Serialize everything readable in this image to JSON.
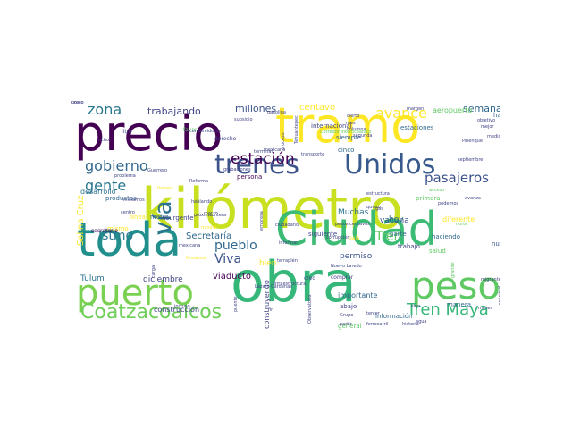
{
  "word_cloud": {
    "words": [
      {
        "text": "kilómetro",
        "color": "#c8e020",
        "size": 62
      },
      {
        "text": "obra",
        "color": "#35b779",
        "size": 62
      },
      {
        "text": "precio",
        "color": "#440154",
        "size": 54
      },
      {
        "text": "tramo",
        "color": "#fde725",
        "size": 54
      },
      {
        "text": "toda",
        "color": "#21908d",
        "size": 52
      },
      {
        "text": "Ciudad",
        "color": "#3cbb75",
        "size": 52
      },
      {
        "text": "puerto",
        "color": "#7ad151",
        "size": 40
      },
      {
        "text": "peso",
        "color": "#5ec962",
        "size": 42
      },
      {
        "text": "trenes",
        "color": "#3b528b",
        "size": 30
      },
      {
        "text": "Unidos",
        "color": "#38598c",
        "size": 30
      },
      {
        "text": "Coatzacoalcos",
        "color": "#6ece58",
        "size": 22
      },
      {
        "text": "Tren Maya",
        "color": "#35b779",
        "size": 18
      },
      {
        "text": "vía",
        "color": "#2c728e",
        "size": 26
      },
      {
        "text": "estación",
        "color": "#440154",
        "size": 17
      },
      {
        "text": "gobierno",
        "color": "#31688e",
        "size": 16
      },
      {
        "text": "gente",
        "color": "#2a788e",
        "size": 16
      },
      {
        "text": "zona",
        "color": "#2a788e",
        "size": 16
      },
      {
        "text": "avance",
        "color": "#fde725",
        "size": 16
      },
      {
        "text": "pasajeros",
        "color": "#3b528b",
        "size": 15
      },
      {
        "text": "Chetumal",
        "color": "#2c728e",
        "size": 15
      },
      {
        "text": "Istmo",
        "color": "#2a788e",
        "size": 14
      },
      {
        "text": "Viva",
        "color": "#3b528b",
        "size": 14
      },
      {
        "text": "pueblo",
        "color": "#31688e",
        "size": 14
      },
      {
        "text": "Tren",
        "color": "#5ec962",
        "size": 14
      },
      {
        "text": "semana",
        "color": "#31688e",
        "size": 11
      },
      {
        "text": "trabajando",
        "color": "#414487",
        "size": 11
      },
      {
        "text": "millones",
        "color": "#3b528b",
        "size": 11
      },
      {
        "text": "centavo",
        "color": "#fde725",
        "size": 10
      },
      {
        "text": "Secretaría",
        "color": "#31688e",
        "size": 10
      },
      {
        "text": "Salina Cruz",
        "color": "#fde725",
        "size": 10
      },
      {
        "text": "viaducto",
        "color": "#440154",
        "size": 10
      },
      {
        "text": "Tulum",
        "color": "#2c728e",
        "size": 9
      },
      {
        "text": "diciembre",
        "color": "#414487",
        "size": 9
      },
      {
        "text": "permiso",
        "color": "#3b528b",
        "size": 9
      },
      {
        "text": "hoy",
        "color": "#2c728e",
        "size": 9
      },
      {
        "text": "Muchas",
        "color": "#2c728e",
        "size": 9
      },
      {
        "text": "vacuna",
        "color": "#3b528b",
        "size": 9
      },
      {
        "text": "bien",
        "color": "#fde725",
        "size": 9
      },
      {
        "text": "aeropuerto",
        "color": "#5ec962",
        "size": 8
      },
      {
        "text": "desarrollo",
        "color": "#2c728e",
        "size": 8
      },
      {
        "text": "diferente",
        "color": "#fde725",
        "size": 8
      },
      {
        "text": "construcción",
        "color": "#414487",
        "size": 8
      },
      {
        "text": "construyendo",
        "color": "#414487",
        "size": 8
      },
      {
        "text": "importante",
        "color": "#31688e",
        "size": 8
      },
      {
        "text": "estaciones",
        "color": "#31688e",
        "size": 7
      },
      {
        "text": "hacia",
        "color": "#31688e",
        "size": 7
      },
      {
        "text": "cinco",
        "color": "#31688e",
        "size": 7
      },
      {
        "text": "siempre",
        "color": "#31688e",
        "size": 7
      },
      {
        "text": "internacional",
        "color": "#414487",
        "size": 7
      },
      {
        "text": "siguiente",
        "color": "#414487",
        "size": 7
      },
      {
        "text": "parte",
        "color": "#31688e",
        "size": 7
      },
      {
        "text": "trabajo",
        "color": "#414487",
        "size": 7
      },
      {
        "text": "salud",
        "color": "#5ec962",
        "size": 7
      },
      {
        "text": "haciendo",
        "color": "#31688e",
        "size": 7
      },
      {
        "text": "nuevo",
        "color": "#3b528b",
        "size": 7
      },
      {
        "text": "Insurgente",
        "color": "#414487",
        "size": 7
      },
      {
        "text": "productos",
        "color": "#31688e",
        "size": 7
      },
      {
        "text": "mismo",
        "color": "#fde725",
        "size": 7
      },
      {
        "text": "línea",
        "color": "#fde725",
        "size": 7
      },
      {
        "text": "metro",
        "color": "#31688e",
        "size": 7
      },
      {
        "text": "manera",
        "color": "#31688e",
        "size": 7
      },
      {
        "text": "información",
        "color": "#31688e",
        "size": 7
      },
      {
        "text": "abajo",
        "color": "#414487",
        "size": 7
      },
      {
        "text": "general",
        "color": "#5ec962",
        "size": 7
      },
      {
        "text": "persona",
        "color": "#440154",
        "size": 7
      },
      {
        "text": "primera",
        "color": "#5ec962",
        "size": 7
      },
      {
        "text": "favor",
        "color": "#5ec962",
        "size": 6
      },
      {
        "text": "derecho",
        "color": "#414487",
        "size": 6
      },
      {
        "text": "litro",
        "color": "#414487",
        "size": 6
      },
      {
        "text": "secretario",
        "color": "#440154",
        "size": 6
      },
      {
        "text": "margen",
        "color": "#414487",
        "size": 5
      },
      {
        "text": "septiembre",
        "color": "#414487",
        "size": 5
      },
      {
        "text": "ferrocarril",
        "color": "#414487",
        "size": 5
      },
      {
        "text": "historia",
        "color": "#414487",
        "size": 5
      },
      {
        "text": "Grupo",
        "color": "#414487",
        "size": 5
      },
      {
        "text": "partir",
        "color": "#414487",
        "size": 5
      },
      {
        "text": "agua",
        "color": "#414487",
        "size": 5
      },
      {
        "text": "comprar",
        "color": "#414487",
        "size": 6
      },
      {
        "text": "creo",
        "color": "#414487",
        "size": 6
      },
      {
        "text": "país",
        "color": "#fde725",
        "size": 6
      },
      {
        "text": "corrupción",
        "color": "#414487",
        "size": 5
      },
      {
        "text": "terraplén",
        "color": "#414487",
        "size": 5
      },
      {
        "text": "informar",
        "color": "#414487",
        "size": 5
      },
      {
        "text": "quiero",
        "color": "#414487",
        "size": 5
      },
      {
        "text": "gas",
        "color": "#414487",
        "size": 5
      },
      {
        "text": "estructura",
        "color": "#414487",
        "size": 5
      },
      {
        "text": "podemos",
        "color": "#414487",
        "size": 5
      },
      {
        "text": "avanza",
        "color": "#414487",
        "size": 5
      },
      {
        "text": "acceso",
        "color": "#5ec962",
        "size": 5
      },
      {
        "text": "terminal",
        "color": "#414487",
        "size": 5
      },
      {
        "text": "grabaciones",
        "color": "#414487",
        "size": 5
      },
      {
        "text": "problema",
        "color": "#414487",
        "size": 5
      },
      {
        "text": "mexicano",
        "color": "#414487",
        "size": 5
      },
      {
        "text": "infraestructura",
        "color": "#414487",
        "size": 5
      },
      {
        "text": "fin",
        "color": "#414487",
        "size": 5
      },
      {
        "text": "Observatorio",
        "color": "#414487",
        "size": 5
      },
      {
        "text": "Guerrero",
        "color": "#414487",
        "size": 5
      },
      {
        "text": "puente",
        "color": "#414487",
        "size": 5
      },
      {
        "text": "incluso",
        "color": "#414487",
        "size": 5
      },
      {
        "text": "sino",
        "color": "#414487",
        "size": 5
      },
      {
        "text": "empresa",
        "color": "#414487",
        "size": 5
      },
      {
        "text": "frontera",
        "color": "#414487",
        "size": 5
      },
      {
        "text": "próximo",
        "color": "#414487",
        "size": 5
      },
      {
        "text": "mes",
        "color": "#414487",
        "size": 5
      },
      {
        "text": "cierto",
        "color": "#414487",
        "size": 5
      },
      {
        "text": "columna",
        "color": "#414487",
        "size": 5
      },
      {
        "text": "gasolina",
        "color": "#414487",
        "size": 5
      },
      {
        "text": "consumidores",
        "color": "#414487",
        "size": 5
      },
      {
        "text": "subsidio",
        "color": "#414487",
        "size": 5
      },
      {
        "text": "ocho",
        "color": "#414487",
        "size": 5
      },
      {
        "text": "mejor",
        "color": "#414487",
        "size": 5
      },
      {
        "text": "objetivo",
        "color": "#414487",
        "size": 5
      },
      {
        "text": "medicina",
        "color": "#414487",
        "size": 5
      },
      {
        "text": "Palenque",
        "color": "#414487",
        "size": 5
      },
      {
        "text": "segunda",
        "color": "#414487",
        "size": 5
      },
      {
        "text": "norte",
        "color": "#5ec962",
        "size": 5
      },
      {
        "text": "migrantes",
        "color": "#414487",
        "size": 5
      },
      {
        "text": "solicitud",
        "color": "#414487",
        "size": 5
      },
      {
        "text": "Tehuantepec",
        "color": "#414487",
        "size": 5
      },
      {
        "text": "proceso",
        "color": "#414487",
        "size": 5
      },
      {
        "text": "Corredor Interoceánico",
        "color": "#5ec962",
        "size": 5
      },
      {
        "text": "carga",
        "color": "#414487",
        "size": 5
      },
      {
        "text": "transporte",
        "color": "#414487",
        "size": 5
      },
      {
        "text": "grande",
        "color": "#5ec962",
        "size": 5
      },
      {
        "text": "pesos centavos",
        "color": "#414487",
        "size": 5
      },
      {
        "text": "mexicana",
        "color": "#414487",
        "size": 5
      },
      {
        "text": "Nuevo Laredo",
        "color": "#414487",
        "size": 5
      },
      {
        "text": "hablando",
        "color": "#414487",
        "size": 5
      },
      {
        "text": "iniciamos",
        "color": "#414487",
        "size": 5
      },
      {
        "text": "centro",
        "color": "#414487",
        "size": 5
      },
      {
        "text": "llevamos",
        "color": "#fde725",
        "size": 5
      },
      {
        "text": "tiempo",
        "color": "#fde725",
        "size": 5
      },
      {
        "text": "Reforma",
        "color": "#414487",
        "size": 5
      },
      {
        "text": "minera",
        "color": "#fde725",
        "size": 5
      },
      {
        "text": "tercer",
        "color": "#414487",
        "size": 5
      },
      {
        "text": "marzo",
        "color": "#414487",
        "size": 5
      },
      {
        "text": "meses",
        "color": "#414487",
        "size": 5
      },
      {
        "text": "Lázaro Cárdenas",
        "color": "#414487",
        "size": 5
      },
      {
        "text": "ciudadano",
        "color": "#414487",
        "size": 5
      },
      {
        "text": "único",
        "color": "#414487",
        "size": 5
      },
      {
        "text": "costo",
        "color": "#414487",
        "size": 5
      }
    ]
  }
}
